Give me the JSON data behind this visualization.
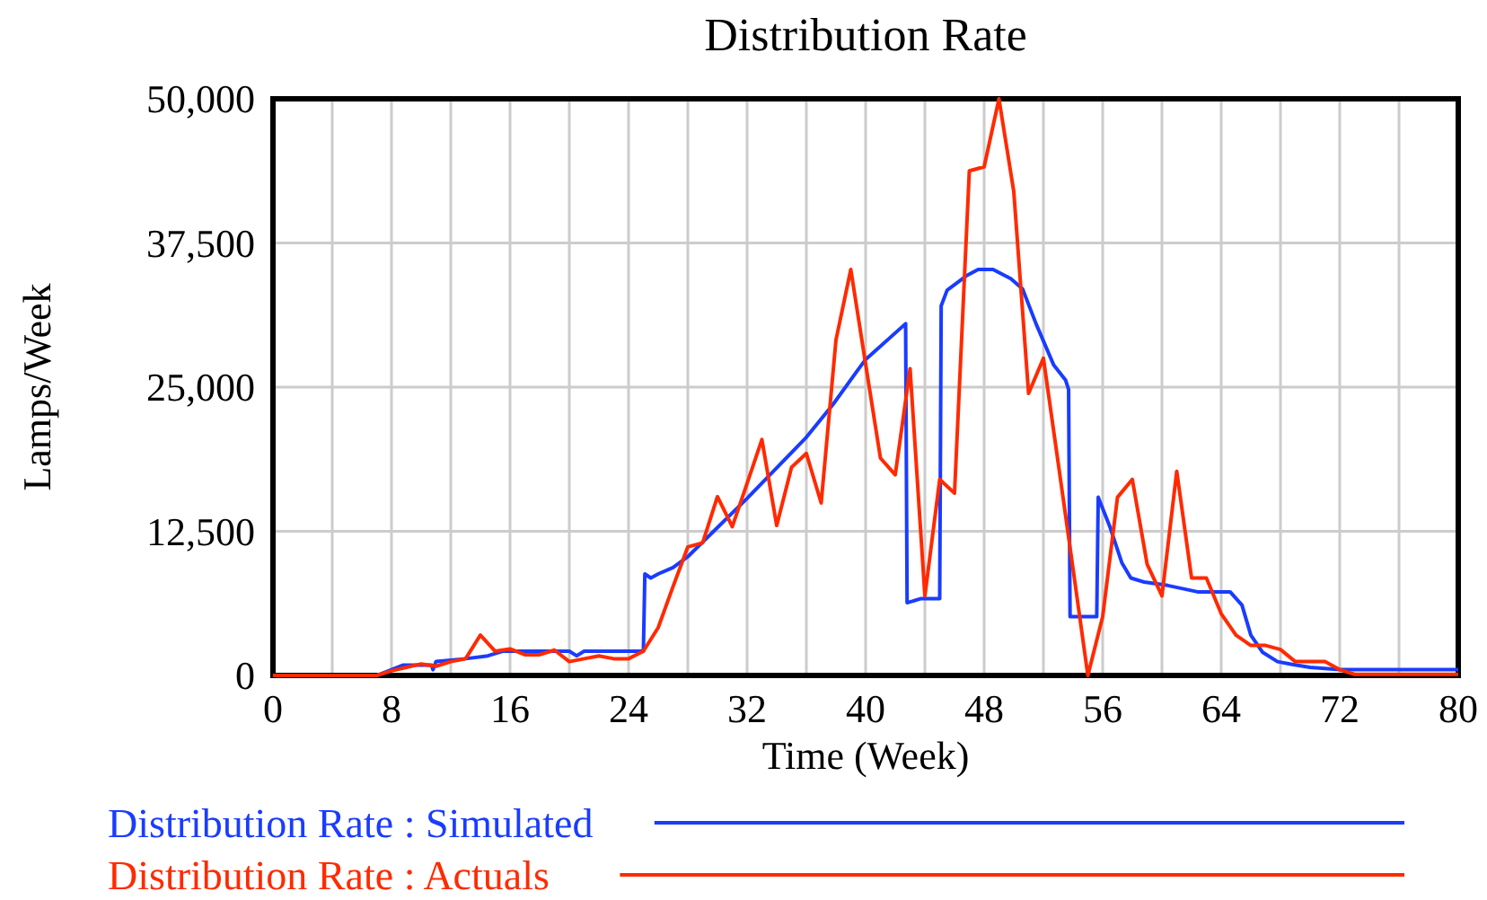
{
  "chart_data": {
    "type": "line",
    "title": "Distribution Rate",
    "xlabel": "Time (Week)",
    "ylabel": "Lamps/Week",
    "xlim": [
      0,
      80
    ],
    "xticks": [
      0,
      {
        "value": 4,
        "label": null
      },
      8,
      {
        "value": 12,
        "label": null
      },
      16,
      {
        "value": 20,
        "label": null
      },
      24,
      {
        "value": 28,
        "label": null
      },
      32,
      {
        "value": 36,
        "label": null
      },
      40,
      {
        "value": 44,
        "label": null
      },
      48,
      {
        "value": 52,
        "label": null
      },
      56,
      {
        "value": 60,
        "label": null
      },
      64,
      {
        "value": 68,
        "label": null
      },
      72,
      {
        "value": 76,
        "label": null
      },
      80
    ],
    "ylim": [
      0,
      50000
    ],
    "yticks": [
      0,
      {
        "value": 12500,
        "label": "12,500"
      },
      {
        "value": 25000,
        "label": "25,000"
      },
      {
        "value": 37500,
        "label": "37,500"
      },
      {
        "value": 50000,
        "label": "50,000"
      }
    ],
    "grid": true,
    "legend": "bottom",
    "marker": "none",
    "line_style": "solid",
    "series": [
      {
        "name": "Distribution Rate : Simulated",
        "color": "#1a3cff",
        "x": [
          0,
          7,
          8.8,
          10.7,
          10.8,
          11,
          13,
          14.5,
          15.5,
          20,
          20.5,
          21,
          25,
          25.1,
          25.5,
          26,
          27,
          28,
          32,
          36,
          37.8,
          39.4,
          40,
          42.7,
          42.8,
          43.7,
          45,
          45.1,
          45.5,
          46.8,
          47.6,
          48.6,
          49.8,
          50.6,
          51.5,
          52.7,
          53.5,
          53.7,
          53.8,
          55.6,
          55.7,
          56.5,
          57.3,
          57.9,
          58.8,
          60.4,
          62.4,
          64.6,
          65.4,
          66,
          66.8,
          67.8,
          68.8,
          70,
          72,
          80
        ],
        "values": [
          0,
          0,
          900,
          900,
          500,
          1200,
          1450,
          1700,
          2100,
          2100,
          1700,
          2100,
          2100,
          8800,
          8450,
          8800,
          9350,
          10300,
          15350,
          20650,
          23500,
          26350,
          27400,
          30500,
          6300,
          6650,
          6650,
          32050,
          33400,
          34650,
          35200,
          35200,
          34400,
          33500,
          30500,
          26900,
          25600,
          24800,
          5100,
          5100,
          15450,
          12850,
          9750,
          8450,
          8100,
          7800,
          7250,
          7250,
          6100,
          3500,
          2000,
          1200,
          950,
          700,
          500,
          500
        ]
      },
      {
        "name": "Distribution Rate : Actuals",
        "color": "#ff2a00",
        "x": [
          0,
          1,
          2,
          3,
          4,
          5,
          6,
          7,
          8,
          9,
          10,
          11,
          12,
          13,
          14,
          15,
          16,
          17,
          18,
          19,
          20,
          21,
          22,
          23,
          24,
          25,
          26,
          27,
          28,
          29,
          30,
          31,
          32,
          33,
          34,
          35,
          36,
          37,
          38,
          39,
          40,
          41,
          42,
          43,
          44,
          45,
          46,
          47,
          48,
          49,
          50,
          51,
          52,
          53,
          54,
          55,
          56,
          57,
          58,
          59,
          60,
          61,
          62,
          63,
          64,
          65,
          66,
          67,
          68,
          69,
          70,
          71,
          72,
          73,
          74,
          75,
          76,
          77,
          78,
          79,
          80
        ],
        "values": [
          0,
          0,
          0,
          0,
          0,
          0,
          0,
          0,
          400,
          700,
          1000,
          800,
          1200,
          1450,
          3500,
          2100,
          2300,
          1800,
          1800,
          2200,
          1200,
          1450,
          1700,
          1450,
          1450,
          2100,
          4150,
          7700,
          11150,
          11500,
          15500,
          12900,
          16650,
          20450,
          13000,
          18050,
          19250,
          14950,
          29100,
          35200,
          27000,
          18850,
          17400,
          26600,
          6900,
          17000,
          15800,
          43750,
          44100,
          50000,
          41950,
          24450,
          27500,
          18400,
          9250,
          0,
          5100,
          15450,
          17000,
          9650,
          6900,
          17700,
          8450,
          8450,
          5350,
          3500,
          2600,
          2600,
          2250,
          1200,
          1200,
          1200,
          500,
          100,
          100,
          100,
          100,
          100,
          100,
          100,
          100
        ]
      }
    ]
  }
}
